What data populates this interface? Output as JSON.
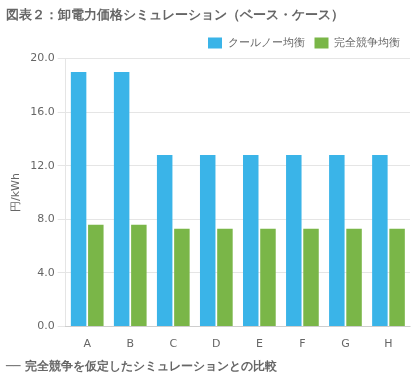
{
  "chart_data": {
    "type": "bar",
    "title": "図表２：卸電力価格シミュレーション（ベース・ケース）",
    "ylabel": "円/kWh",
    "categories": [
      "A",
      "B",
      "C",
      "D",
      "E",
      "F",
      "G",
      "H"
    ],
    "series": [
      {
        "name": "クールノー均衡",
        "color": "#3ab4e8",
        "values": [
          19.0,
          19.0,
          12.8,
          12.8,
          12.8,
          12.8,
          12.8,
          12.8
        ]
      },
      {
        "name": "完全競争均衡",
        "color": "#7ab648",
        "values": [
          7.6,
          7.6,
          7.3,
          7.3,
          7.3,
          7.3,
          7.3,
          7.3
        ]
      }
    ],
    "ylim": [
      0,
      20.0
    ],
    "yticks": [
      {
        "value": 0.0,
        "label": "0.0"
      },
      {
        "value": 4.0,
        "label": "4.0"
      },
      {
        "value": 8.0,
        "label": "8.0"
      },
      {
        "value": 12.0,
        "label": "12.0"
      },
      {
        "value": 16.0,
        "label": "16.0"
      },
      {
        "value": 20.0,
        "label": "20.0"
      }
    ],
    "grid": true,
    "legend": "upper right",
    "annotations": [
      "── 完全競争を仮定したシミュレーションとの比較"
    ]
  }
}
